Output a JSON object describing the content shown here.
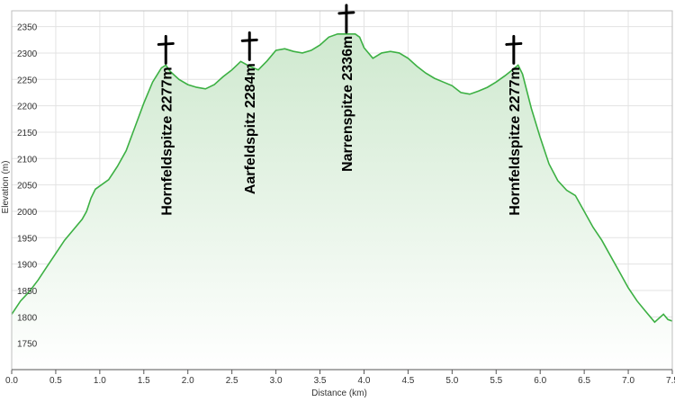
{
  "chart_data": {
    "type": "area",
    "title": "",
    "xlabel": "Distance  (km)",
    "ylabel": "Elevation (m)",
    "xlim": [
      0,
      7.5
    ],
    "ylim": [
      1700,
      2380
    ],
    "x_ticks": [
      "0.0",
      "0.5",
      "1.0",
      "1.5",
      "2.0",
      "2.5",
      "3.0",
      "3.5",
      "4.0",
      "4.5",
      "5.0",
      "5.5",
      "6.0",
      "6.5",
      "7.0",
      "7.5"
    ],
    "y_ticks": [
      "1750",
      "1800",
      "1850",
      "1900",
      "1950",
      "2000",
      "2050",
      "2100",
      "2150",
      "2200",
      "2250",
      "2300",
      "2350"
    ],
    "grid": true,
    "line_color": "#3cb043",
    "fill_top_color": "#cfe9cf",
    "fill_bottom_color": "#ffffff",
    "series": [
      {
        "x": [
          0.0,
          0.1,
          0.2,
          0.3,
          0.4,
          0.5,
          0.6,
          0.7,
          0.8,
          0.85,
          0.9,
          0.95,
          1.0,
          1.1,
          1.2,
          1.3,
          1.4,
          1.5,
          1.6,
          1.7,
          1.75,
          1.8,
          1.9,
          2.0,
          2.1,
          2.2,
          2.3,
          2.4,
          2.5,
          2.6,
          2.7,
          2.8,
          2.9,
          3.0,
          3.1,
          3.2,
          3.3,
          3.4,
          3.5,
          3.6,
          3.7,
          3.8,
          3.9,
          3.95,
          4.0,
          4.1,
          4.2,
          4.3,
          4.4,
          4.5,
          4.6,
          4.7,
          4.8,
          4.9,
          5.0,
          5.1,
          5.2,
          5.3,
          5.4,
          5.5,
          5.6,
          5.7,
          5.75,
          5.8,
          5.9,
          6.0,
          6.1,
          6.2,
          6.3,
          6.4,
          6.5,
          6.6,
          6.7,
          6.8,
          6.9,
          7.0,
          7.1,
          7.2,
          7.3,
          7.4,
          7.45,
          7.5
        ],
        "y": [
          1805,
          1830,
          1848,
          1870,
          1895,
          1920,
          1945,
          1965,
          1985,
          2000,
          2025,
          2042,
          2048,
          2060,
          2085,
          2115,
          2160,
          2205,
          2245,
          2272,
          2277,
          2265,
          2250,
          2240,
          2235,
          2232,
          2240,
          2255,
          2268,
          2284,
          2275,
          2268,
          2285,
          2305,
          2308,
          2303,
          2300,
          2305,
          2315,
          2330,
          2336,
          2336,
          2336,
          2330,
          2310,
          2290,
          2300,
          2303,
          2300,
          2290,
          2275,
          2262,
          2252,
          2245,
          2238,
          2225,
          2222,
          2228,
          2235,
          2245,
          2257,
          2270,
          2277,
          2260,
          2195,
          2140,
          2090,
          2058,
          2040,
          2030,
          2000,
          1970,
          1945,
          1915,
          1885,
          1855,
          1830,
          1810,
          1790,
          1805,
          1795,
          1792
        ]
      }
    ],
    "annotations": [
      {
        "text": "Hornfeldspitze 2277m",
        "x": 1.75,
        "y": 2277
      },
      {
        "text": "Aarfeldspitz 2284m",
        "x": 2.7,
        "y": 2284
      },
      {
        "text": "Narrenspitze 2336m",
        "x": 3.8,
        "y": 2336
      },
      {
        "text": "Hornfeldspitze 2277m",
        "x": 5.7,
        "y": 2277
      }
    ]
  }
}
